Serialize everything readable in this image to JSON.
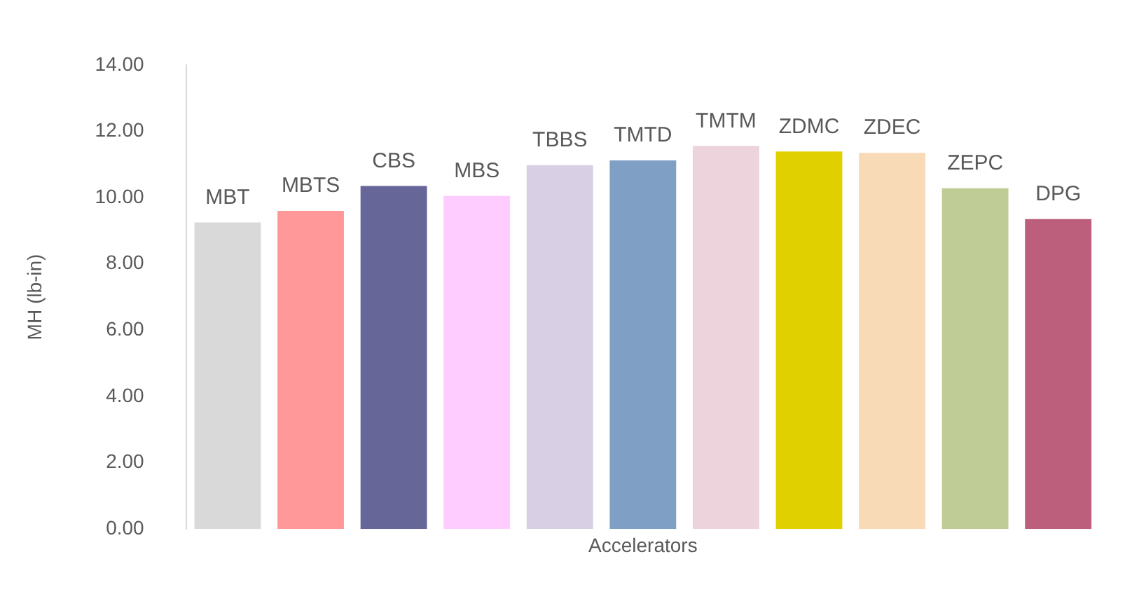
{
  "chart_data": {
    "type": "bar",
    "xlabel": "Accelerators",
    "ylabel": "MH (lb-in)",
    "categories": [
      "MBT",
      "MBTS",
      "CBS",
      "MBS",
      "TBBS",
      "TMTD",
      "TMTM",
      "ZDMC",
      "ZDEC",
      "ZEPC",
      "DPG"
    ],
    "values": [
      9.25,
      9.6,
      10.35,
      10.05,
      10.98,
      11.12,
      11.56,
      11.39,
      11.35,
      10.28,
      9.35
    ],
    "colors": [
      "#d9d9d9",
      "#ff9999",
      "#666699",
      "#ffccff",
      "#d8cfe5",
      "#7f9fc4",
      "#ecd3dc",
      "#e0d000",
      "#f9dab6",
      "#c0cc96",
      "#bc5f7c"
    ],
    "ylim": [
      0,
      14
    ],
    "yticks": [
      {
        "value": 0,
        "label": "0.00"
      },
      {
        "value": 2,
        "label": "2.00"
      },
      {
        "value": 4,
        "label": "4.00"
      },
      {
        "value": 6,
        "label": "6.00"
      },
      {
        "value": 8,
        "label": "8.00"
      },
      {
        "value": 10,
        "label": "10.00"
      },
      {
        "value": 12,
        "label": "12.00"
      },
      {
        "value": 14,
        "label": "14.00"
      }
    ],
    "tick_labels": "y"
  }
}
